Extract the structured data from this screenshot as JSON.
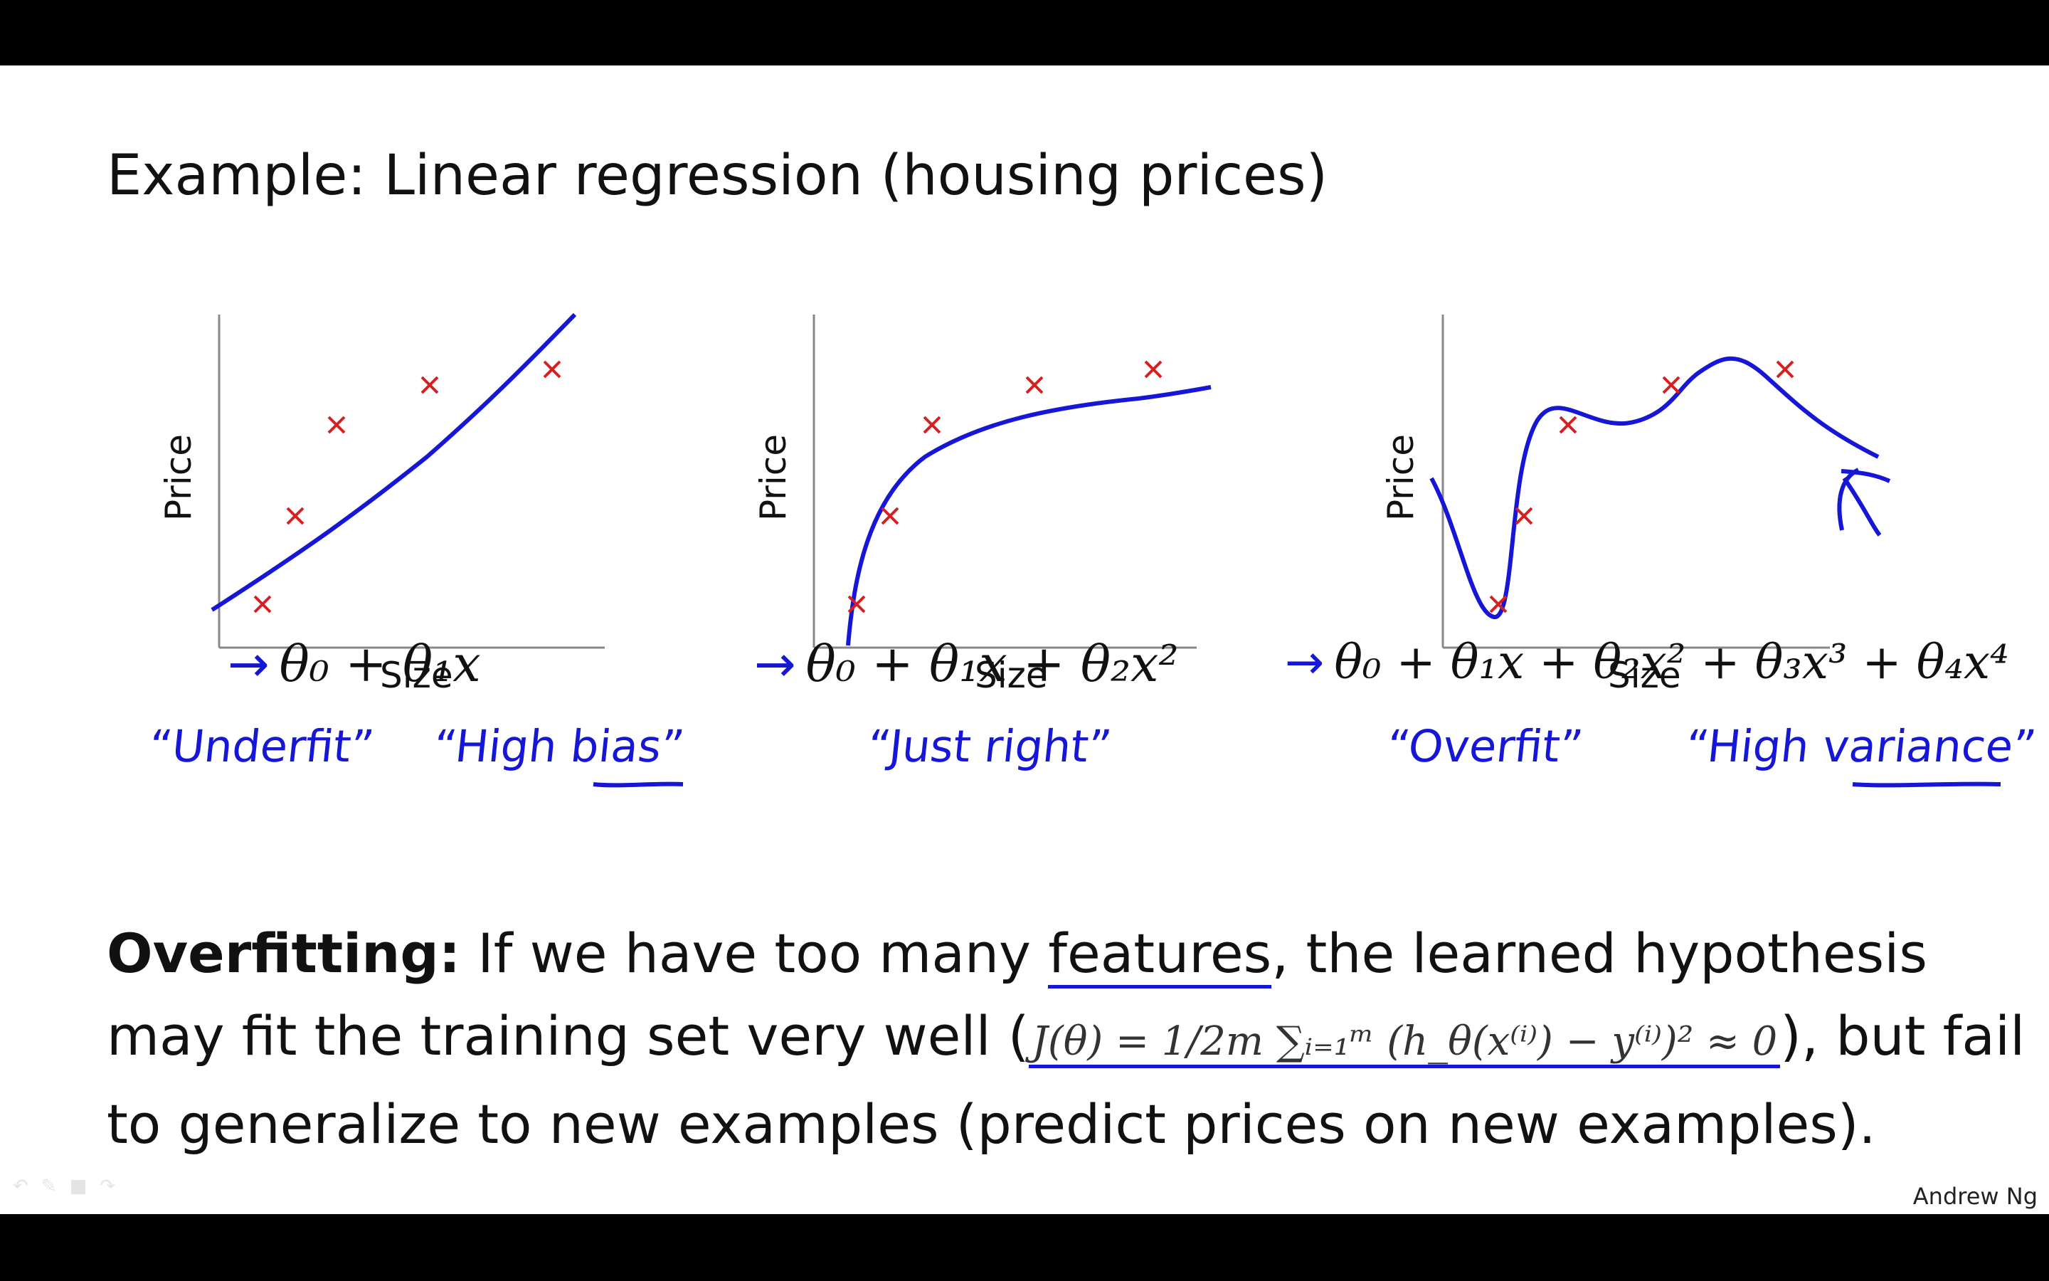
{
  "title": "Example: Linear regression (housing prices)",
  "panels": [
    {
      "ylabel": "Price",
      "xlabel": "Size",
      "formula": {
        "arrow": "→",
        "tex": "θ₀ + θ₁x"
      },
      "notes": [
        "“Underfit”",
        "“High bias”"
      ],
      "underline_word": "bias"
    },
    {
      "ylabel": "Price",
      "xlabel": "Size",
      "formula": {
        "arrow": "→",
        "tex": "θ₀ + θ₁x + θ₂x²"
      },
      "notes": [
        "“Just right”"
      ]
    },
    {
      "ylabel": "Price",
      "xlabel": "Size",
      "formula": {
        "arrow": "→",
        "tex": "θ₀ + θ₁x + θ₂x² + θ₃x³ + θ₄x⁴"
      },
      "notes": [
        "“Overfit”",
        "“High variance”"
      ],
      "underline_word": "variance"
    }
  ],
  "overfitting": {
    "lead": "Overfitting:",
    "line1_a": "If we have too many ",
    "line1_u": "features",
    "line1_b": ", the learned hypothesis",
    "line2_a": "may fit the training set very well (",
    "cost_function": "J(θ) = 1/2m ∑ᵢ₌₁ᵐ (h_θ(x⁽ⁱ⁾) − y⁽ⁱ⁾)² ≈ 0",
    "line2_b": "), but fail",
    "line3": "to generalize to new examples (predict prices on new examples)."
  },
  "credit": "Andrew Ng",
  "colors": {
    "ink": "#1616d6",
    "marker": "#d62020",
    "text": "#111111"
  },
  "chart_data": [
    {
      "type": "scatter",
      "xlabel": "Size",
      "ylabel": "Price",
      "fit": "linear"
    },
    {
      "type": "scatter",
      "xlabel": "Size",
      "ylabel": "Price",
      "fit": "quadratic"
    },
    {
      "type": "scatter",
      "xlabel": "Size",
      "ylabel": "Price",
      "fit": "quartic"
    }
  ]
}
